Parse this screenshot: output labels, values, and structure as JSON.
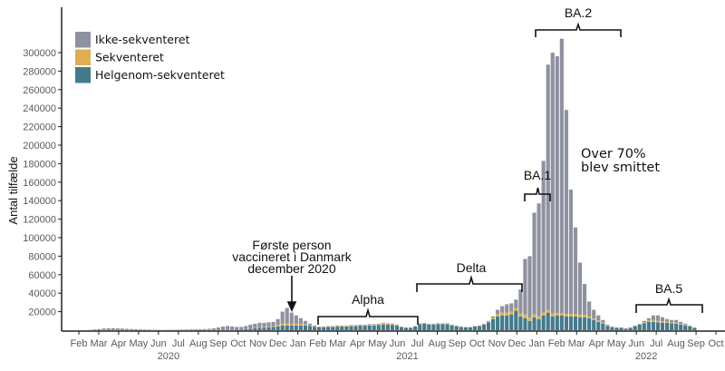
{
  "chart_data": {
    "type": "bar",
    "stacked": true,
    "interval": "weekly",
    "first_week_start": "2020-02-03",
    "ylabel": "Antal tilfælde",
    "xlabel": "",
    "ylim": [
      0,
      340000
    ],
    "yticks": [
      20000,
      40000,
      60000,
      80000,
      100000,
      120000,
      140000,
      160000,
      180000,
      200000,
      220000,
      240000,
      260000,
      280000,
      300000
    ],
    "month_labels": [
      "Feb",
      "Mar",
      "Apr",
      "May",
      "Jun",
      "Jul",
      "Aug",
      "Sep",
      "Oct",
      "Nov",
      "Dec",
      "Jan",
      "Feb",
      "Mar",
      "Apr",
      "May",
      "Jun",
      "Jul",
      "Aug",
      "Sep",
      "Oct",
      "Nov",
      "Dec",
      "Jan",
      "Feb",
      "Mar",
      "Apr",
      "May",
      "Jun",
      "Jul",
      "Aug",
      "Sep",
      "Oct"
    ],
    "year_labels": [
      {
        "label": "2020",
        "month_index": 5
      },
      {
        "label": "2021",
        "month_index": 17
      },
      {
        "label": "2022",
        "month_index": 29
      }
    ],
    "legend": {
      "placement": "top-left",
      "entries": [
        {
          "name": "Ikke-sekventeret",
          "color": "#8e929f"
        },
        {
          "name": "Sekventeret",
          "color": "#dfae4f"
        },
        {
          "name": "Helgenom-sekventeret",
          "color": "#447a8d"
        }
      ]
    },
    "total": [
      0,
      100,
      300,
      800,
      1200,
      1800,
      2000,
      2200,
      2000,
      1800,
      1500,
      1200,
      1000,
      800,
      600,
      500,
      400,
      300,
      300,
      400,
      400,
      500,
      600,
      700,
      800,
      900,
      1000,
      1200,
      1500,
      2000,
      3000,
      4000,
      4500,
      4000,
      3500,
      3500,
      4500,
      6000,
      7000,
      8000,
      8000,
      8500,
      9000,
      12000,
      20000,
      24000,
      19000,
      16000,
      13000,
      10000,
      7000,
      5000,
      4000,
      4000,
      4500,
      4500,
      5000,
      5000,
      5000,
      5500,
      5500,
      6000,
      6000,
      6500,
      6500,
      7000,
      8000,
      7500,
      7000,
      6000,
      4000,
      3000,
      3000,
      4500,
      7500,
      8000,
      7000,
      7000,
      7500,
      7500,
      7500,
      6000,
      5000,
      4000,
      3500,
      3500,
      4500,
      5000,
      7000,
      10000,
      15000,
      22000,
      26000,
      28000,
      29000,
      33000,
      44000,
      77000,
      80000,
      127000,
      137000,
      183000,
      287000,
      300000,
      296000,
      315000,
      238000,
      152000,
      111000,
      73000,
      50000,
      31000,
      22000,
      16000,
      11000,
      6000,
      4000,
      3000,
      3000,
      2000,
      3000,
      5000,
      7000,
      10000,
      13000,
      16000,
      16000,
      14000,
      12000,
      11000,
      11000,
      9000,
      7000,
      5000,
      3000
    ],
    "series": [
      {
        "name": "Helgenom-sekventeret",
        "values": [
          0,
          0,
          0,
          0,
          0,
          0,
          0,
          0,
          0,
          0,
          0,
          0,
          0,
          0,
          0,
          0,
          0,
          0,
          0,
          0,
          0,
          0,
          0,
          0,
          0,
          0,
          50,
          100,
          200,
          300,
          400,
          500,
          600,
          600,
          700,
          800,
          1000,
          1500,
          2000,
          2500,
          2500,
          3000,
          3500,
          4000,
          5000,
          5000,
          5000,
          5000,
          5000,
          5000,
          4500,
          3500,
          3000,
          3000,
          3500,
          3500,
          3800,
          4000,
          4000,
          4200,
          4300,
          4800,
          4800,
          5000,
          5000,
          5500,
          6000,
          6000,
          5500,
          4800,
          3300,
          2500,
          2500,
          4000,
          6500,
          7000,
          6000,
          6200,
          6500,
          6500,
          6500,
          5200,
          4300,
          3500,
          3000,
          3000,
          4000,
          4500,
          6000,
          8500,
          12000,
          15000,
          16000,
          16000,
          17000,
          21000,
          15000,
          13000,
          10000,
          14000,
          12000,
          16000,
          19000,
          15000,
          16000,
          16000,
          15000,
          15000,
          15000,
          14000,
          14000,
          13000,
          11000,
          9000,
          7000,
          4500,
          3200,
          2500,
          2500,
          1700,
          2600,
          4300,
          6000,
          7500,
          9000,
          9000,
          8500,
          8000,
          8000,
          7500,
          7000,
          6000,
          5000,
          4000,
          2500
        ]
      },
      {
        "name": "Sekventeret",
        "values": [
          0,
          0,
          0,
          0,
          0,
          0,
          0,
          0,
          0,
          0,
          0,
          0,
          0,
          0,
          0,
          0,
          0,
          0,
          0,
          0,
          0,
          0,
          0,
          0,
          0,
          0,
          0,
          0,
          50,
          50,
          100,
          100,
          150,
          150,
          150,
          200,
          200,
          300,
          400,
          500,
          600,
          700,
          800,
          1500,
          2000,
          2000,
          1500,
          1500,
          1500,
          1200,
          900,
          600,
          500,
          500,
          600,
          600,
          600,
          600,
          700,
          700,
          700,
          700,
          800,
          800,
          800,
          900,
          1200,
          1000,
          900,
          700,
          400,
          300,
          300,
          400,
          600,
          600,
          500,
          500,
          500,
          500,
          500,
          400,
          400,
          300,
          300,
          300,
          300,
          400,
          600,
          900,
          1500,
          2500,
          3000,
          3000,
          3000,
          3000,
          3000,
          4000,
          3500,
          3000,
          3000,
          3000,
          3000,
          3000,
          2500,
          2500,
          2500,
          2500,
          2500,
          2500,
          2500,
          2000,
          1500,
          1500,
          1000,
          800,
          400,
          300,
          300,
          200,
          300,
          400,
          600,
          1000,
          1500,
          1500,
          1500,
          1500,
          1200,
          1200,
          1200,
          1000,
          800,
          500,
          300
        ]
      },
      {
        "name": "Ikke-sekventeret",
        "derived": "total minus sequenced"
      }
    ],
    "annotations": {
      "ba2": "BA.2",
      "ba1": "BA.1",
      "over70_line1": "Over 70%",
      "over70_line2": "blev smittet",
      "delta": "Delta",
      "alpha": "Alpha",
      "ba5": "BA.5",
      "vacc_line1": "Første person",
      "vacc_line2": "vaccineret i Danmark",
      "vacc_line3": "december 2020"
    }
  }
}
